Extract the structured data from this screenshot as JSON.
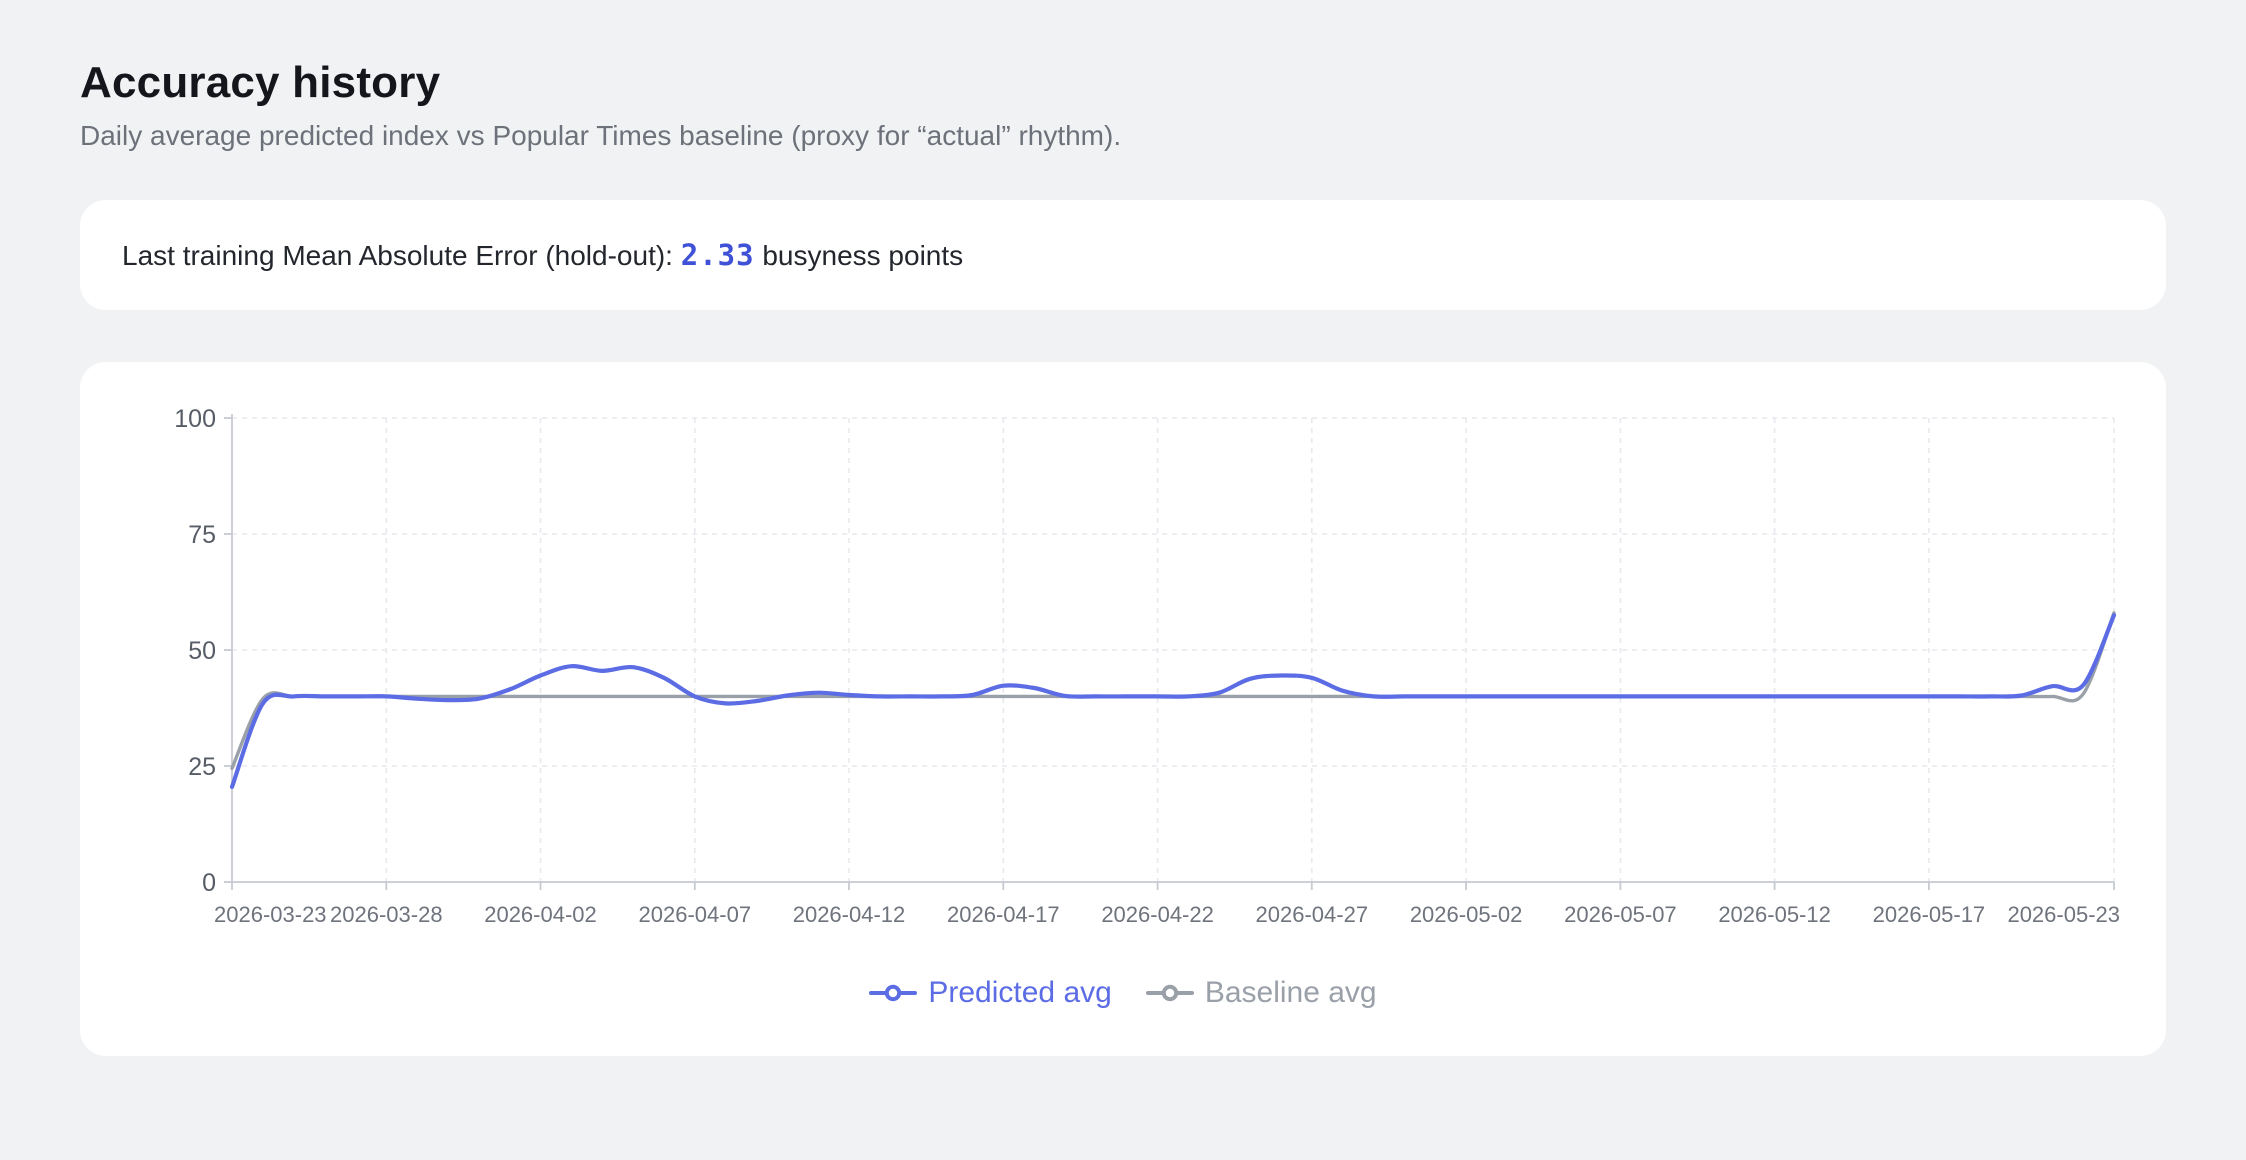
{
  "page": {
    "title": "Accuracy history",
    "subtitle": "Daily average predicted index vs Popular Times baseline (proxy for “actual” rhythm)."
  },
  "mae_card": {
    "label_prefix": "Last training Mean Absolute Error (hold-out): ",
    "value": "2.33",
    "label_suffix": " busyness points"
  },
  "colors": {
    "page_bg": "#f1f2f4",
    "card_bg": "#ffffff",
    "accent_blue": "#3f51d6",
    "predicted_line": "#5b6ce4",
    "baseline_line": "#9aa0a8"
  },
  "chart_data": {
    "type": "line",
    "title": "",
    "xlabel": "",
    "ylabel": "",
    "ylim": [
      0,
      100
    ],
    "yticks": [
      0,
      25,
      50,
      75,
      100
    ],
    "grid": true,
    "legend_position": "bottom",
    "xticks": [
      "2026-03-23",
      "2026-03-28",
      "2026-04-02",
      "2026-04-07",
      "2026-04-12",
      "2026-04-17",
      "2026-04-22",
      "2026-04-27",
      "2026-05-02",
      "2026-05-07",
      "2026-05-12",
      "2026-05-17",
      "2026-05-23"
    ],
    "x": [
      "2026-03-23",
      "2026-03-24",
      "2026-03-25",
      "2026-03-26",
      "2026-03-27",
      "2026-03-28",
      "2026-03-29",
      "2026-03-30",
      "2026-03-31",
      "2026-04-01",
      "2026-04-02",
      "2026-04-03",
      "2026-04-04",
      "2026-04-05",
      "2026-04-06",
      "2026-04-07",
      "2026-04-08",
      "2026-04-09",
      "2026-04-10",
      "2026-04-11",
      "2026-04-12",
      "2026-04-13",
      "2026-04-14",
      "2026-04-15",
      "2026-04-16",
      "2026-04-17",
      "2026-04-18",
      "2026-04-19",
      "2026-04-20",
      "2026-04-21",
      "2026-04-22",
      "2026-04-23",
      "2026-04-24",
      "2026-04-25",
      "2026-04-26",
      "2026-04-27",
      "2026-04-28",
      "2026-04-29",
      "2026-04-30",
      "2026-05-01",
      "2026-05-02",
      "2026-05-03",
      "2026-05-04",
      "2026-05-05",
      "2026-05-06",
      "2026-05-07",
      "2026-05-08",
      "2026-05-09",
      "2026-05-10",
      "2026-05-11",
      "2026-05-12",
      "2026-05-13",
      "2026-05-14",
      "2026-05-15",
      "2026-05-16",
      "2026-05-17",
      "2026-05-18",
      "2026-05-19",
      "2026-05-20",
      "2026-05-21",
      "2026-05-22",
      "2026-05-23"
    ],
    "series": [
      {
        "name": "Predicted avg",
        "color": "#5b6ce4",
        "values": [
          20.5,
          38.5,
          40,
          40,
          40,
          40,
          39.5,
          39.2,
          39.5,
          41.5,
          44.5,
          46.5,
          45.5,
          46.3,
          44,
          40,
          38.5,
          39,
          40.2,
          40.8,
          40.3,
          40,
          40,
          40,
          40.3,
          42.3,
          41.8,
          40.1,
          40,
          40,
          40,
          40,
          40.8,
          43.8,
          44.5,
          44,
          41.2,
          40,
          40,
          40,
          40,
          40,
          40,
          40,
          40,
          40,
          40,
          40,
          40,
          40,
          40,
          40,
          40,
          40,
          40,
          40,
          40,
          40,
          40.2,
          42.2,
          42.4,
          57.5
        ]
      },
      {
        "name": "Baseline avg",
        "color": "#9aa0a8",
        "values": [
          24.5,
          39.5,
          40,
          40,
          40,
          40,
          40,
          40,
          40,
          40,
          40,
          40,
          40,
          40,
          40,
          40,
          40,
          40,
          40,
          40,
          40,
          40,
          40,
          40,
          40,
          40,
          40,
          40,
          40,
          40,
          40,
          40,
          40,
          40,
          40,
          40,
          40,
          40,
          40,
          40,
          40,
          40,
          40,
          40,
          40,
          40,
          40,
          40,
          40,
          40,
          40,
          40,
          40,
          40,
          40,
          40,
          40,
          40,
          40,
          40,
          40.5,
          58
        ]
      }
    ]
  }
}
